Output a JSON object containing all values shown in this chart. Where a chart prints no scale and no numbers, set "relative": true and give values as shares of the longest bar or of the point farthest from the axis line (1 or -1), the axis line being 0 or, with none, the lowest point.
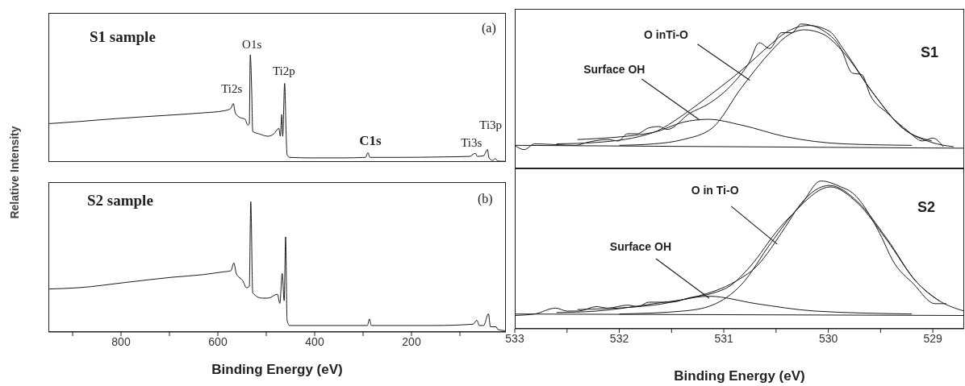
{
  "chart_data": [
    {
      "type": "line",
      "relative": true,
      "tick_labels": false,
      "xlim": [
        950,
        5
      ],
      "ylabel": "Relative Intensity",
      "annotations": [
        "S1 sample",
        "(a)",
        {
          "text": "O1s",
          "x": 533,
          "y": 1.0
        },
        {
          "text": "Ti2p",
          "x": 462,
          "y": 0.733
        },
        {
          "text": "Ti2s",
          "x": 568,
          "y": 0.545
        },
        {
          "text": "C1s",
          "x": 290,
          "y": 0.087
        },
        {
          "text": "Ti3s",
          "x": 68,
          "y": 0.081
        },
        {
          "text": "Ti3p",
          "x": 43,
          "y": 0.116
        }
      ],
      "series": [
        {
          "color": "#1a1a1a",
          "x": [
            950,
            887,
            823,
            759,
            695,
            631,
            586,
            573,
            568,
            564,
            554,
            544,
            538,
            535,
            533,
            530,
            528,
            516,
            496,
            484,
            474,
            471,
            468,
            466,
            462,
            459,
            457,
            452,
            407,
            343,
            295,
            290,
            286,
            214,
            150,
            80,
            68,
            64,
            51,
            43,
            40,
            32,
            27,
            22,
            6
          ],
          "values": [
            0.357,
            0.377,
            0.4,
            0.42,
            0.438,
            0.458,
            0.478,
            0.5,
            0.545,
            0.458,
            0.414,
            0.4,
            0.342,
            0.36,
            1.0,
            0.646,
            0.284,
            0.264,
            0.24,
            0.264,
            0.313,
            0.24,
            0.443,
            0.24,
            0.733,
            0.27,
            0.067,
            0.043,
            0.038,
            0.038,
            0.043,
            0.087,
            0.043,
            0.043,
            0.046,
            0.052,
            0.081,
            0.052,
            0.058,
            0.116,
            0.038,
            0.014,
            0.032,
            0.009,
            0.006
          ]
        }
      ]
    },
    {
      "type": "line",
      "relative": true,
      "tick_labels": "x",
      "xlim": [
        950,
        5
      ],
      "xlabel": "Binding Energy (eV)",
      "xticks": [
        {
          "value": 900,
          "label": null
        },
        800,
        {
          "value": 700,
          "label": null
        },
        600,
        {
          "value": 500,
          "label": null
        },
        400,
        {
          "value": 300,
          "label": null
        },
        200,
        {
          "value": 100,
          "label": null
        }
      ],
      "annotations": [
        "S2 sample",
        "(b)"
      ],
      "series": [
        {
          "color": "#1a1a1a",
          "x": [
            950,
            887,
            791,
            695,
            631,
            592,
            573,
            567,
            562,
            548,
            541,
            535,
            532,
            528,
            509,
            496,
            477,
            472,
            467,
            463,
            460,
            457,
            452,
            343,
            291,
            287,
            283,
            150,
            73,
            65,
            60,
            51,
            41,
            37,
            25,
            22,
            6
          ],
          "values": [
            0.33,
            0.34,
            0.38,
            0.42,
            0.44,
            0.46,
            0.47,
            0.53,
            0.45,
            0.39,
            0.34,
            0.35,
            1.0,
            0.3,
            0.26,
            0.26,
            0.29,
            0.22,
            0.45,
            0.24,
            0.73,
            0.09,
            0.05,
            0.05,
            0.05,
            0.1,
            0.05,
            0.05,
            0.06,
            0.09,
            0.05,
            0.05,
            0.14,
            0.04,
            0.04,
            0.02,
            0.01
          ]
        }
      ]
    },
    {
      "type": "line",
      "relative": true,
      "tick_labels": false,
      "xlim": [
        533,
        528.7
      ],
      "annotations": [
        "S1",
        {
          "text": "O inTi-O",
          "x": 530.75,
          "y": 0.61
        },
        {
          "text": "Surface OH",
          "x": 531.23,
          "y": 0.335
        }
      ],
      "series": [
        {
          "color": "#1a1a1a",
          "x": [
            533,
            532.91,
            532.81,
            532.42,
            532.31,
            532.11,
            532.01,
            531.92,
            531.83,
            531.72,
            531.62,
            531.54,
            531.33,
            531.14,
            530.91,
            530.76,
            530.66,
            530.56,
            530.45,
            530.35,
            530.26,
            530.16,
            530.06,
            529.88,
            529.77,
            529.68,
            529.6,
            529.43,
            529.24,
            529.1,
            529.0,
            528.9
          ],
          "values": [
            0.16,
            0.13,
            0.17,
            0.16,
            0.18,
            0.2,
            0.19,
            0.24,
            0.24,
            0.28,
            0.29,
            0.27,
            0.38,
            0.45,
            0.59,
            0.73,
            0.87,
            0.83,
            0.94,
            0.94,
            1.0,
            0.99,
            0.96,
            0.83,
            0.66,
            0.65,
            0.51,
            0.38,
            0.26,
            0.19,
            0.21,
            0.15
          ]
        },
        {
          "color": "#1a1a1a",
          "x": [
            532.6,
            532.22,
            531.67,
            531.39,
            531.11,
            530.83,
            530.55,
            530.41,
            530.19,
            529.99,
            529.85,
            529.57,
            529.29,
            529.01
          ],
          "values": [
            0.17,
            0.18,
            0.25,
            0.37,
            0.52,
            0.68,
            0.86,
            0.94,
            0.99,
            0.95,
            0.82,
            0.52,
            0.28,
            0.19
          ]
        },
        {
          "color": "#1a1a1a",
          "x": [
            532.0,
            531.67,
            531.39,
            531.11,
            530.83,
            530.55,
            530.41,
            530.23,
            530.05,
            529.85,
            529.57,
            529.29,
            529.01,
            528.8
          ],
          "values": [
            0.16,
            0.17,
            0.2,
            0.28,
            0.56,
            0.81,
            0.91,
            0.96,
            0.93,
            0.8,
            0.52,
            0.28,
            0.18,
            0.15
          ]
        },
        {
          "color": "#1a1a1a",
          "x": [
            532.4,
            531.67,
            531.39,
            531.15,
            530.83,
            530.41,
            529.85,
            529.2
          ],
          "values": [
            0.2,
            0.25,
            0.32,
            0.34,
            0.3,
            0.22,
            0.17,
            0.16
          ]
        },
        {
          "color": "#1a1a1a",
          "x": [
            533,
            528.7
          ],
          "values": [
            0.16,
            0.14
          ]
        }
      ]
    },
    {
      "type": "line",
      "relative": true,
      "tick_labels": "x",
      "xlim": [
        533,
        528.7
      ],
      "xlabel": "Binding Energy (eV)",
      "xticks": [
        533,
        {
          "value": 532.5,
          "label": null
        },
        532,
        {
          "value": 531.5,
          "label": null
        },
        531,
        {
          "value": 530.5,
          "label": null
        },
        530,
        {
          "value": 529.5,
          "label": null
        },
        529
      ],
      "annotations": [
        "S2",
        {
          "text": "O in Ti-O",
          "x": 530.49,
          "y": 0.573
        },
        {
          "text": "Surface OH",
          "x": 531.14,
          "y": 0.207
        }
      ],
      "series": [
        {
          "color": "#1a1a1a",
          "x": [
            533,
            532.81,
            532.61,
            532.5,
            532.39,
            532.22,
            532.11,
            531.92,
            531.82,
            531.72,
            531.5,
            531.33,
            531.11,
            530.94,
            530.75,
            530.47,
            530.27,
            530.07,
            529.88,
            529.77,
            529.49,
            529.39,
            529.18,
            528.98,
            528.87
          ],
          "values": [
            0.09,
            0.1,
            0.14,
            0.12,
            0.12,
            0.15,
            0.14,
            0.16,
            0.15,
            0.18,
            0.18,
            0.21,
            0.24,
            0.29,
            0.42,
            0.68,
            0.83,
            1.0,
            0.96,
            0.92,
            0.62,
            0.47,
            0.3,
            0.17,
            0.17
          ]
        },
        {
          "color": "#1a1a1a",
          "x": [
            532.6,
            532.22,
            531.67,
            531.25,
            530.89,
            530.69,
            530.41,
            530.27,
            529.99,
            529.72,
            529.44,
            529.16,
            528.94
          ],
          "values": [
            0.11,
            0.12,
            0.17,
            0.22,
            0.32,
            0.42,
            0.69,
            0.84,
            0.97,
            0.86,
            0.61,
            0.32,
            0.19
          ]
        },
        {
          "color": "#1a1a1a",
          "x": [
            532.0,
            531.39,
            531.11,
            530.83,
            530.55,
            530.27,
            529.98,
            529.72,
            529.44,
            529.16,
            528.94,
            528.7
          ],
          "values": [
            0.1,
            0.12,
            0.16,
            0.3,
            0.58,
            0.83,
            0.96,
            0.85,
            0.6,
            0.32,
            0.19,
            0.12
          ]
        },
        {
          "color": "#1a1a1a",
          "x": [
            532.4,
            531.67,
            531.14,
            530.69,
            530.13,
            529.2
          ],
          "values": [
            0.13,
            0.16,
            0.22,
            0.17,
            0.12,
            0.1
          ]
        },
        {
          "color": "#1a1a1a",
          "x": [
            533,
            528.7
          ],
          "values": [
            0.1,
            0.09
          ]
        }
      ]
    }
  ]
}
